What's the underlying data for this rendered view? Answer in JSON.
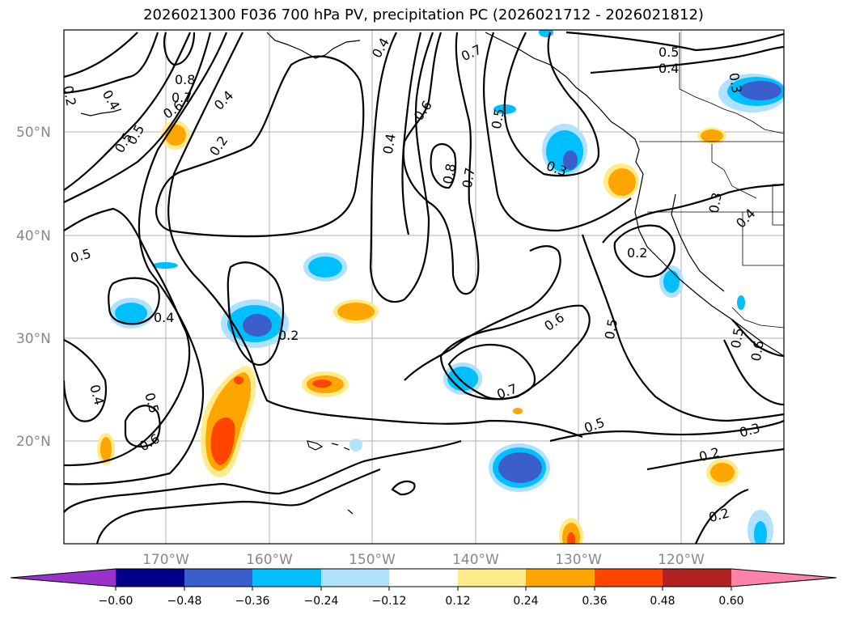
{
  "title": "2026021300 F036 700 hPa PV, precipitation PC (2026021712 - 2026021812)",
  "map": {
    "lat_labels": [
      "50°N",
      "40°N",
      "30°N",
      "20°N"
    ],
    "lon_labels": [
      "170°W",
      "160°W",
      "150°W",
      "140°W",
      "130°W",
      "120°W"
    ],
    "contour_labels": [
      "0.8",
      "0.7",
      "0.6",
      "0.4",
      "0.2",
      "0.2",
      "0.4",
      "0.5",
      "0.5",
      "0.6",
      "0.4",
      "0.7",
      "0.5",
      "0.8",
      "0.7",
      "0.3",
      "0.5",
      "0.4",
      "0.3",
      "0.3",
      "0.4",
      "0.2",
      "0.5",
      "0.4",
      "0.2",
      "0.4",
      "0.5",
      "0.6",
      "0.6",
      "0.7",
      "0.5",
      "0.5",
      "0.3",
      "0.2",
      "0.2",
      "0.4",
      "0.5",
      "0.6"
    ]
  },
  "colorbar": {
    "colors": [
      "#9932cc",
      "#00008b",
      "#3a5fcd",
      "#00bfff",
      "#b0e2ff",
      "#ffffff",
      "#ffeb8a",
      "#ffa500",
      "#ff4500",
      "#b22222",
      "#ff82ab"
    ],
    "tick_labels": [
      "−0.60",
      "−0.48",
      "−0.36",
      "−0.24",
      "−0.12",
      "0.12",
      "0.24",
      "0.36",
      "0.48",
      "0.60"
    ]
  }
}
